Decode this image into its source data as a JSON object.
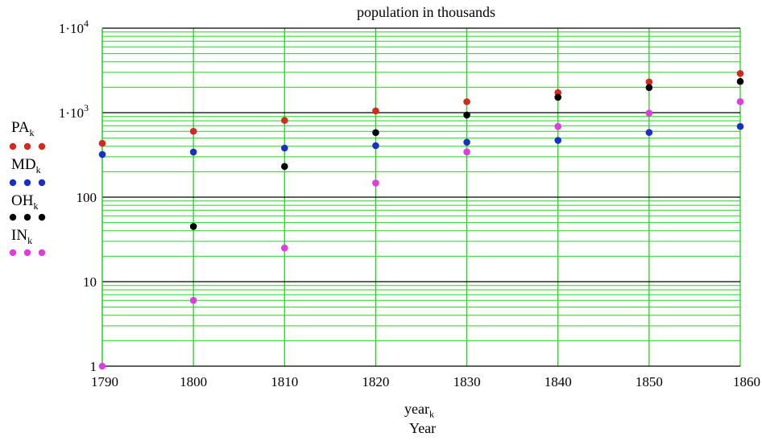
{
  "chart_data": {
    "type": "scatter",
    "title": "population in thousands",
    "xlabel_var": "year",
    "xlabel_sub": "k",
    "xlabel": "Year",
    "xlim": [
      1790,
      1860
    ],
    "ylim": [
      1,
      10000
    ],
    "yscale": "log",
    "grid": true,
    "legend_placement": "left",
    "x_ticks": [
      "1790",
      "1800",
      "1810",
      "1820",
      "1830",
      "1840",
      "1850",
      "1860"
    ],
    "y_ticks": [
      {
        "value": 1,
        "label": "1"
      },
      {
        "value": 10,
        "label": "10"
      },
      {
        "value": 100,
        "label": "100"
      },
      {
        "value": 1000,
        "label": "1·10",
        "exp": "3"
      },
      {
        "value": 10000,
        "label": "1·10",
        "exp": "4"
      }
    ],
    "series": [
      {
        "name": "PA",
        "sub": "k",
        "color": "#d42a1e",
        "x": [
          1790,
          1800,
          1810,
          1820,
          1830,
          1840,
          1850,
          1860
        ],
        "values": [
          434,
          602,
          810,
          1049,
          1348,
          1724,
          2312,
          2906
        ]
      },
      {
        "name": "MD",
        "sub": "k",
        "color": "#1a2fc8",
        "x": [
          1790,
          1800,
          1810,
          1820,
          1830,
          1840,
          1850,
          1860
        ],
        "values": [
          320,
          342,
          381,
          407,
          447,
          470,
          583,
          687
        ]
      },
      {
        "name": "OH",
        "sub": "k",
        "color": "#000000",
        "x": [
          1800,
          1810,
          1820,
          1830,
          1840,
          1850,
          1860
        ],
        "values": [
          45,
          231,
          581,
          938,
          1519,
          1980,
          2340
        ]
      },
      {
        "name": "IN",
        "sub": "k",
        "color": "#e03be0",
        "x": [
          1790,
          1800,
          1810,
          1820,
          1830,
          1840,
          1850,
          1860
        ],
        "values": [
          1,
          6,
          25,
          147,
          343,
          686,
          988,
          1350
        ]
      }
    ]
  }
}
